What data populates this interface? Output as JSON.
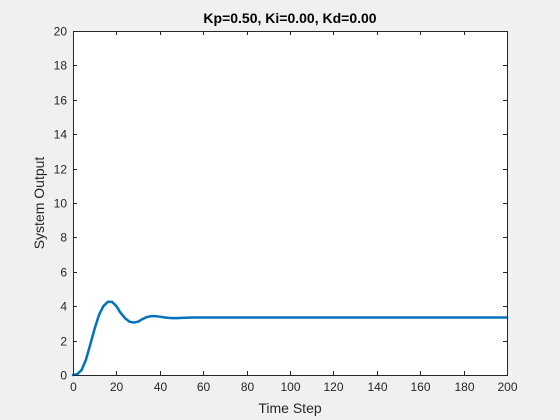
{
  "chart_data": {
    "type": "line",
    "title": "Kp=0.50, Ki=0.00, Kd=0.00",
    "xlabel": "Time Step",
    "ylabel": "System Output",
    "xlim": [
      0,
      200
    ],
    "ylim": [
      0,
      20
    ],
    "xticks": [
      "0",
      "20",
      "40",
      "60",
      "80",
      "100",
      "120",
      "140",
      "160",
      "180",
      "200"
    ],
    "yticks": [
      "0",
      "2",
      "4",
      "6",
      "8",
      "10",
      "12",
      "14",
      "16",
      "18",
      "20"
    ],
    "grid": false,
    "legend": "none",
    "colors": {
      "line": "#0072bd",
      "axes": "#262626",
      "background": "#f0f0f0",
      "plot_area": "#ffffff"
    },
    "series": [
      {
        "x": [
          0,
          2,
          4,
          6,
          8,
          10,
          12,
          14,
          16,
          18,
          20,
          22,
          24,
          26,
          28,
          30,
          32,
          34,
          36,
          38,
          40,
          42,
          44,
          46,
          48,
          50,
          55,
          60,
          65,
          70,
          80,
          90,
          100,
          120,
          140,
          160,
          180,
          200
        ],
        "y": [
          0,
          0.05,
          0.3,
          0.9,
          1.8,
          2.7,
          3.5,
          4.0,
          4.25,
          4.25,
          4.0,
          3.6,
          3.3,
          3.1,
          3.05,
          3.1,
          3.25,
          3.37,
          3.42,
          3.42,
          3.39,
          3.35,
          3.32,
          3.31,
          3.31,
          3.32,
          3.34,
          3.34,
          3.34,
          3.34,
          3.34,
          3.34,
          3.34,
          3.34,
          3.34,
          3.34,
          3.34,
          3.34
        ]
      }
    ]
  }
}
